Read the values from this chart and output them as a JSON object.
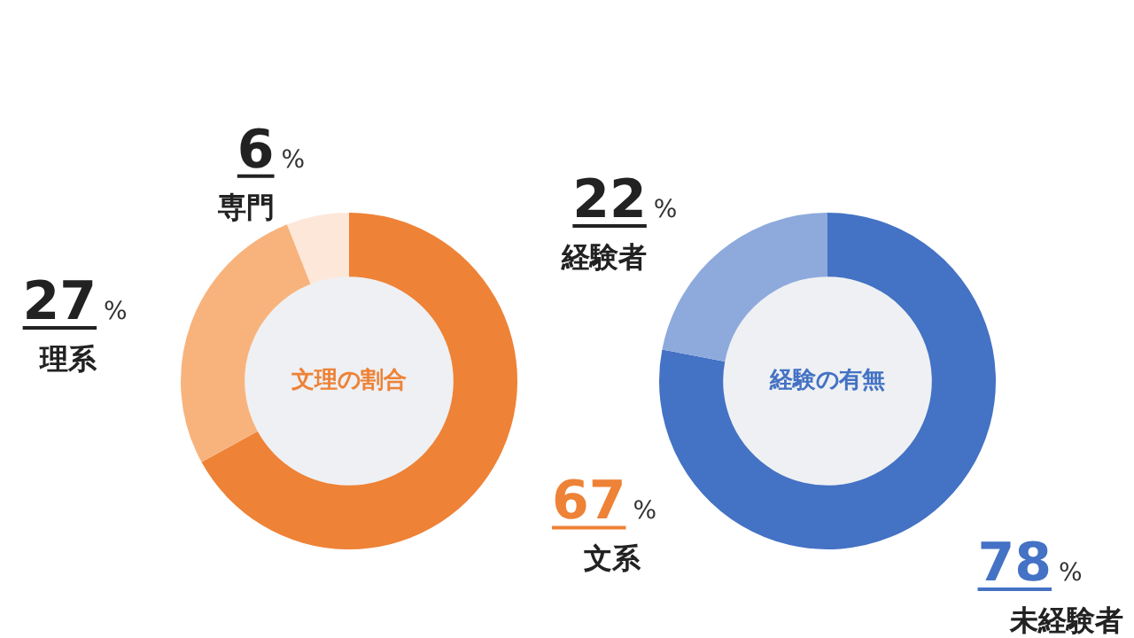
{
  "chart_data": [
    {
      "type": "donut",
      "title": "文理の割合",
      "categories": [
        "文系",
        "理系",
        "専門"
      ],
      "values": [
        67,
        27,
        6
      ],
      "colors": [
        "#ee8236",
        "#f8b37c",
        "#fde7d9"
      ],
      "value_labels": [
        "67%",
        "27%",
        "6%"
      ]
    },
    {
      "type": "donut",
      "title": "経験の有無",
      "categories": [
        "未経験者",
        "経験者"
      ],
      "values": [
        78,
        22
      ],
      "colors": [
        "#4472c4",
        "#8eaadc"
      ],
      "value_labels": [
        "78%",
        "22%"
      ]
    }
  ]
}
